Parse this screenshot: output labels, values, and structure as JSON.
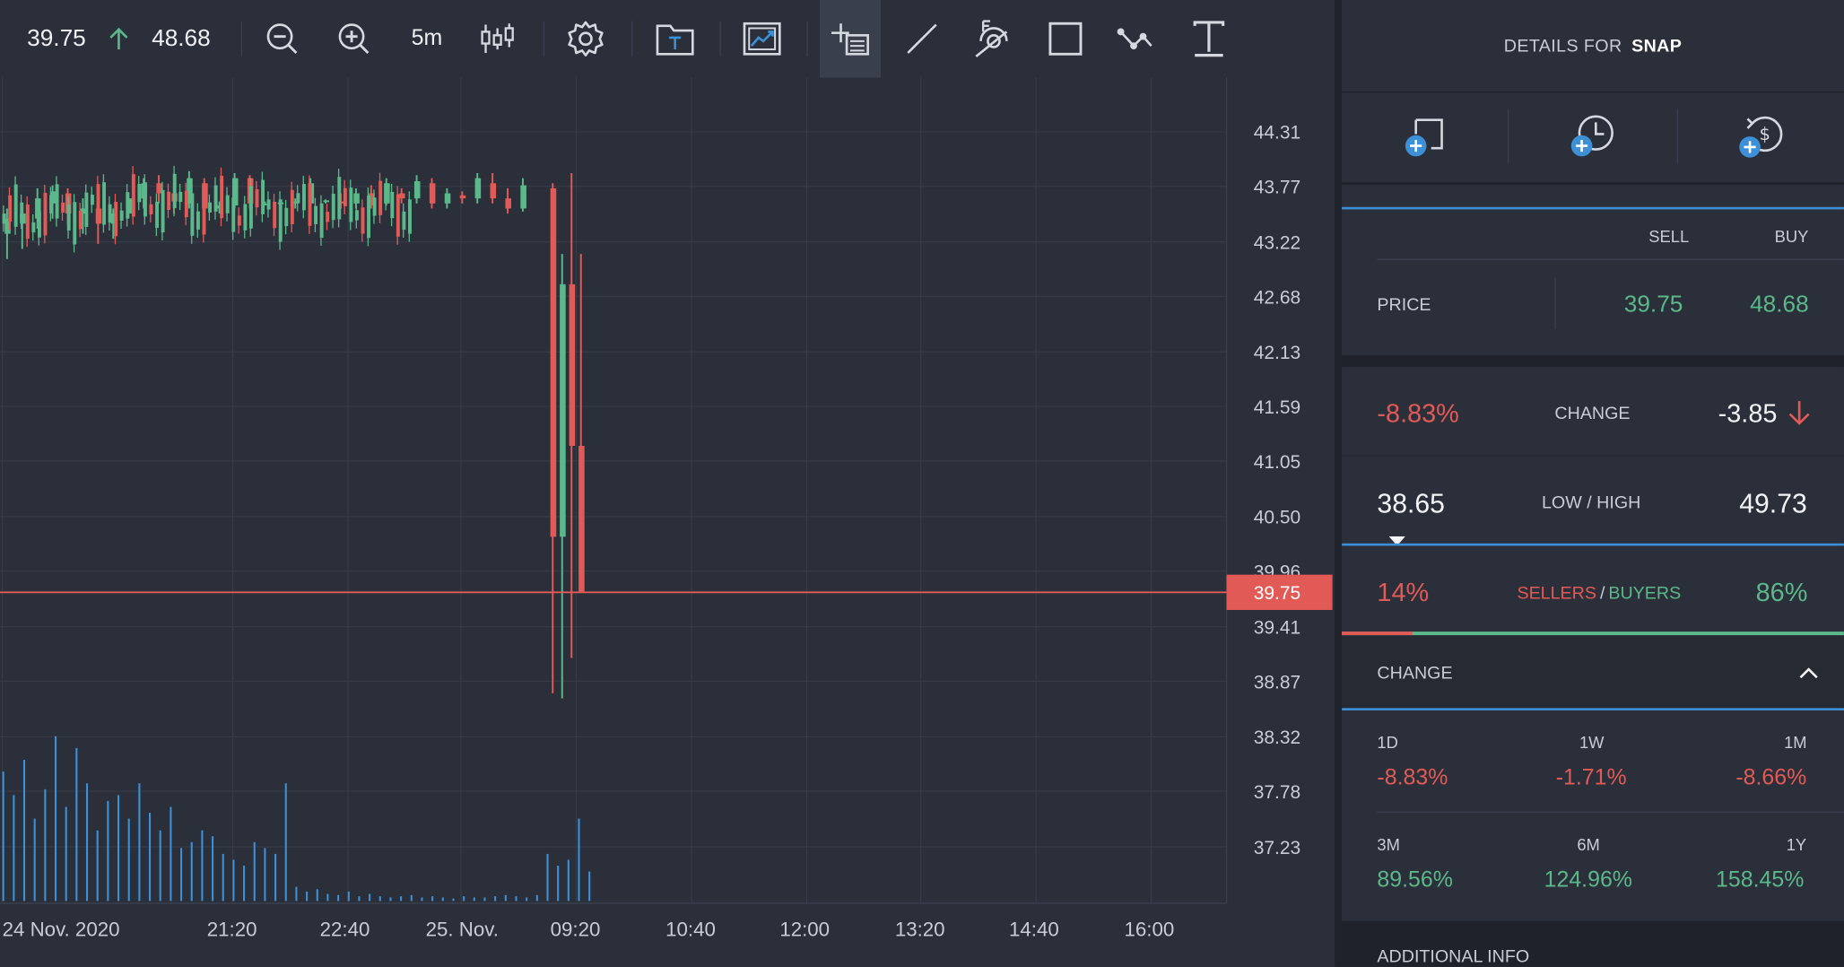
{
  "toolbar": {
    "sell_price": "39.75",
    "buy_price": "48.68",
    "timeframe": "5m",
    "icons": [
      "zoom-out-icon",
      "zoom-in-icon",
      "candlestick-icon",
      "gear-icon",
      "text-template-icon",
      "chart-image-icon",
      "crosshair-list-icon",
      "line-tool-icon",
      "fibonacci-icon",
      "rectangle-tool-icon",
      "path-tool-icon",
      "text-tool-icon"
    ]
  },
  "chart": {
    "current_price_label": "39.75",
    "colors": {
      "up": "#5bb88a",
      "down": "#e25a56",
      "volume": "#3d8fd6",
      "grid": "#353a47"
    }
  },
  "chart_data": {
    "type": "candlestick",
    "y_ticks": [
      "44.31",
      "43.77",
      "43.22",
      "42.68",
      "42.13",
      "41.59",
      "41.05",
      "40.50",
      "39.96",
      "39.41",
      "38.87",
      "38.32",
      "37.78",
      "37.23"
    ],
    "x_ticks": [
      "24 Nov. 2020",
      "21:20",
      "22:40",
      "25. Nov.",
      "09:20",
      "10:40",
      "12:00",
      "13:20",
      "14:40",
      "16:00"
    ],
    "ylim": [
      37.0,
      44.6
    ],
    "current_price": 39.75,
    "candles_note": "5m candles; pre-market ~43.2-43.9 then drop near 09:20 with lows ~38.7",
    "candles": [
      {
        "t": 0,
        "o": 43.3,
        "h": 43.55,
        "l": 43.05,
        "c": 43.45
      },
      {
        "t": 1,
        "o": 43.4,
        "h": 43.6,
        "l": 43.15,
        "c": 43.5
      },
      {
        "t": 2,
        "o": 43.45,
        "h": 43.75,
        "l": 43.35,
        "c": 43.65
      },
      {
        "t": 3,
        "o": 43.6,
        "h": 43.78,
        "l": 43.45,
        "c": 43.72
      },
      {
        "t": 4,
        "o": 43.7,
        "h": 43.75,
        "l": 43.4,
        "c": 43.5
      },
      {
        "t": 5,
        "o": 43.5,
        "h": 43.65,
        "l": 43.3,
        "c": 43.55
      },
      {
        "t": 6,
        "o": 43.55,
        "h": 43.6,
        "l": 43.2,
        "c": 43.4
      },
      {
        "t": 7,
        "o": 43.4,
        "h": 43.55,
        "l": 43.25,
        "c": 43.5
      },
      {
        "t": 8,
        "o": 43.5,
        "h": 43.7,
        "l": 43.45,
        "c": 43.65
      },
      {
        "t": 9,
        "o": 43.65,
        "h": 43.85,
        "l": 43.55,
        "c": 43.8
      },
      {
        "t": 10,
        "o": 43.8,
        "h": 43.88,
        "l": 43.6,
        "c": 43.7
      },
      {
        "t": 11,
        "o": 43.7,
        "h": 43.8,
        "l": 43.5,
        "c": 43.62
      },
      {
        "t": 12,
        "o": 43.6,
        "h": 43.92,
        "l": 43.55,
        "c": 43.85
      },
      {
        "t": 13,
        "o": 43.8,
        "h": 43.85,
        "l": 43.45,
        "c": 43.55
      },
      {
        "t": 14,
        "o": 43.55,
        "h": 43.62,
        "l": 43.5,
        "c": 43.58
      },
      {
        "t": 15,
        "o": 43.58,
        "h": 43.9,
        "l": 43.55,
        "c": 43.85
      },
      {
        "t": 16,
        "o": 43.85,
        "h": 43.88,
        "l": 43.55,
        "c": 43.6
      },
      {
        "t": 17,
        "o": 43.6,
        "h": 43.62,
        "l": 43.58,
        "c": 43.6
      },
      {
        "t": 18,
        "o": 43.6,
        "h": 43.62,
        "l": 43.58,
        "c": 43.61
      },
      {
        "t": 19,
        "o": 43.6,
        "h": 43.65,
        "l": 43.55,
        "c": 43.62
      },
      {
        "t": 20,
        "o": 43.6,
        "h": 43.85,
        "l": 43.55,
        "c": 43.8
      },
      {
        "t": 21,
        "o": 43.62,
        "h": 43.64,
        "l": 43.6,
        "c": 43.63
      },
      {
        "t": 22,
        "o": 43.62,
        "h": 43.7,
        "l": 43.55,
        "c": 43.6
      },
      {
        "t": 23,
        "o": 43.6,
        "h": 43.75,
        "l": 43.55,
        "c": 43.7
      },
      {
        "t": 24,
        "o": 43.7,
        "h": 43.78,
        "l": 43.55,
        "c": 43.58
      },
      {
        "t": 25,
        "o": 43.6,
        "h": 43.85,
        "l": 43.58,
        "c": 43.8
      },
      {
        "t": 26,
        "o": 43.7,
        "h": 43.75,
        "l": 43.6,
        "c": 43.65
      },
      {
        "t": 27,
        "o": 43.65,
        "h": 43.88,
        "l": 43.6,
        "c": 43.82
      },
      {
        "t": 28,
        "o": 43.8,
        "h": 43.85,
        "l": 43.55,
        "c": 43.6
      },
      {
        "t": 29,
        "o": 43.6,
        "h": 43.75,
        "l": 43.55,
        "c": 43.7
      },
      {
        "t": 30,
        "o": 43.68,
        "h": 43.72,
        "l": 43.6,
        "c": 43.65
      },
      {
        "t": 31,
        "o": 43.65,
        "h": 43.9,
        "l": 43.6,
        "c": 43.85
      },
      {
        "t": 32,
        "o": 43.8,
        "h": 43.9,
        "l": 43.6,
        "c": 43.65
      },
      {
        "t": 33,
        "o": 43.65,
        "h": 43.75,
        "l": 43.5,
        "c": 43.55
      },
      {
        "t": 34,
        "o": 43.55,
        "h": 43.85,
        "l": 43.52,
        "c": 43.78
      },
      {
        "t": 35,
        "o": 43.75,
        "h": 43.8,
        "l": 38.75,
        "c": 40.3
      },
      {
        "t": 36,
        "o": 40.3,
        "h": 43.1,
        "l": 38.7,
        "c": 42.8
      },
      {
        "t": 37,
        "o": 42.8,
        "h": 43.9,
        "l": 39.1,
        "c": 41.2
      },
      {
        "t": 38,
        "o": 41.2,
        "h": 43.1,
        "l": 39.8,
        "c": 39.75
      }
    ]
  },
  "panel": {
    "title_prefix": "DETAILS FOR",
    "symbol": "SNAP",
    "action_icons": [
      "add-alert-icon",
      "add-timed-alert-icon",
      "add-price-alert-icon"
    ],
    "sell_label": "SELL",
    "buy_label": "BUY",
    "price_label": "PRICE",
    "sell_price": "39.75",
    "buy_price": "48.68",
    "change_pct": "-8.83%",
    "change_label": "CHANGE",
    "change_abs": "-3.85",
    "low": "38.65",
    "lowhigh_label": "LOW / HIGH",
    "high": "49.73",
    "sellers_pct": "14%",
    "sellers_label": "SELLERS",
    "slash": "/",
    "buyers_label": "BUYERS",
    "buyers_pct": "86%",
    "change_section_label": "CHANGE",
    "changes": [
      {
        "period": "1D",
        "value": "-8.83%"
      },
      {
        "period": "1W",
        "value": "-1.71%"
      },
      {
        "period": "1M",
        "value": "-8.66%"
      },
      {
        "period": "3M",
        "value": "89.56%"
      },
      {
        "period": "6M",
        "value": "124.96%"
      },
      {
        "period": "1Y",
        "value": "158.45%"
      }
    ],
    "additional_info_label": "ADDITIONAL INFO"
  }
}
